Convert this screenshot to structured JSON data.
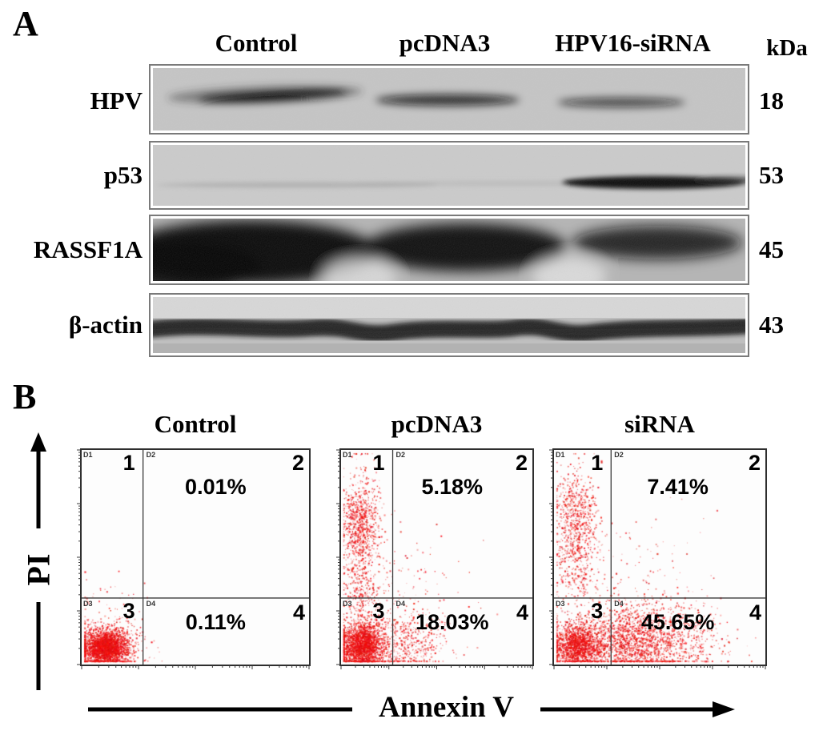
{
  "figure": {
    "panel_a": {
      "label": "A",
      "col_headers": [
        "Control",
        "pcDNA3",
        "HPV16-siRNA"
      ],
      "unit_header": "kDa",
      "rows": [
        {
          "protein": "HPV",
          "kda": "18",
          "band_intensity": [
            "strong",
            "medium",
            "weak"
          ]
        },
        {
          "protein": "p53",
          "kda": "53",
          "band_intensity": [
            "absent",
            "absent",
            "strong"
          ]
        },
        {
          "protein": "RASSF1A",
          "kda": "45",
          "band_intensity": [
            "strong",
            "strong",
            "medium"
          ]
        },
        {
          "protein": "β-actin",
          "kda": "43",
          "band_intensity": [
            "equal",
            "equal",
            "equal"
          ]
        }
      ]
    },
    "panel_b": {
      "label": "B",
      "y_axis_label": "PI",
      "x_axis_label": "Annexin V",
      "quadrant_numbers": [
        "1",
        "2",
        "3",
        "4"
      ],
      "gate_names": [
        "D1",
        "D2",
        "D3",
        "D4"
      ],
      "plots": [
        {
          "title": "Control",
          "q2_percent": "0.01%",
          "q4_percent": "0.11%"
        },
        {
          "title": "pcDNA3",
          "q2_percent": "5.18%",
          "q4_percent": "18.03%"
        },
        {
          "title": "siRNA",
          "q2_percent": "7.41%",
          "q4_percent": "45.65%"
        }
      ]
    }
  },
  "chart_data": [
    {
      "type": "scatter",
      "title": "Control",
      "xlabel": "Annexin V",
      "ylabel": "PI",
      "axis_scale": "log, 4 decades, no numeric tick labels",
      "point_color": "#ff0000",
      "quadrant_percentages": {
        "Q2": 0.01,
        "Q4": 0.11
      },
      "gate_x": 0.27,
      "gate_y": 0.31,
      "clusters": [
        {
          "cx": 0.1,
          "cy": 0.08,
          "sx": 0.05,
          "sy": 0.04,
          "n": 2600
        },
        {
          "cx": 0.1,
          "cy": 0.09,
          "sx": 0.09,
          "sy": 0.07,
          "n": 500
        },
        {
          "cx": 0.12,
          "cy": 0.24,
          "sx": 0.07,
          "sy": 0.11,
          "n": 60
        }
      ]
    },
    {
      "type": "scatter",
      "title": "pcDNA3",
      "xlabel": "Annexin V",
      "ylabel": "PI",
      "axis_scale": "log, 4 decades, no numeric tick labels",
      "point_color": "#ff0000",
      "quadrant_percentages": {
        "Q2": 5.18,
        "Q4": 18.03
      },
      "gate_x": 0.27,
      "gate_y": 0.31,
      "clusters": [
        {
          "cx": 0.105,
          "cy": 0.09,
          "sx": 0.055,
          "sy": 0.05,
          "n": 2200
        },
        {
          "cx": 0.1,
          "cy": 0.45,
          "sx": 0.05,
          "sy": 0.22,
          "n": 700
        },
        {
          "cx": 0.1,
          "cy": 0.67,
          "sx": 0.045,
          "sy": 0.09,
          "n": 520
        },
        {
          "cx": 0.3,
          "cy": 0.1,
          "sx": 0.13,
          "sy": 0.07,
          "n": 650
        },
        {
          "cx": 0.28,
          "cy": 0.32,
          "sx": 0.16,
          "sy": 0.16,
          "n": 180
        }
      ]
    },
    {
      "type": "scatter",
      "title": "siRNA",
      "xlabel": "Annexin V",
      "ylabel": "PI",
      "axis_scale": "log, 4 decades, no numeric tick labels",
      "point_color": "#ff0000",
      "quadrant_percentages": {
        "Q2": 7.41,
        "Q4": 45.65
      },
      "gate_x": 0.27,
      "gate_y": 0.31,
      "clusters": [
        {
          "cx": 0.11,
          "cy": 0.09,
          "sx": 0.055,
          "sy": 0.05,
          "n": 1600
        },
        {
          "cx": 0.36,
          "cy": 0.11,
          "sx": 0.15,
          "sy": 0.08,
          "n": 1900
        },
        {
          "cx": 0.58,
          "cy": 0.13,
          "sx": 0.14,
          "sy": 0.09,
          "n": 350
        },
        {
          "cx": 0.1,
          "cy": 0.58,
          "sx": 0.05,
          "sy": 0.15,
          "n": 650
        },
        {
          "cx": 0.1,
          "cy": 0.75,
          "sx": 0.05,
          "sy": 0.08,
          "n": 250
        },
        {
          "cx": 0.3,
          "cy": 0.35,
          "sx": 0.18,
          "sy": 0.18,
          "n": 220
        }
      ]
    }
  ]
}
